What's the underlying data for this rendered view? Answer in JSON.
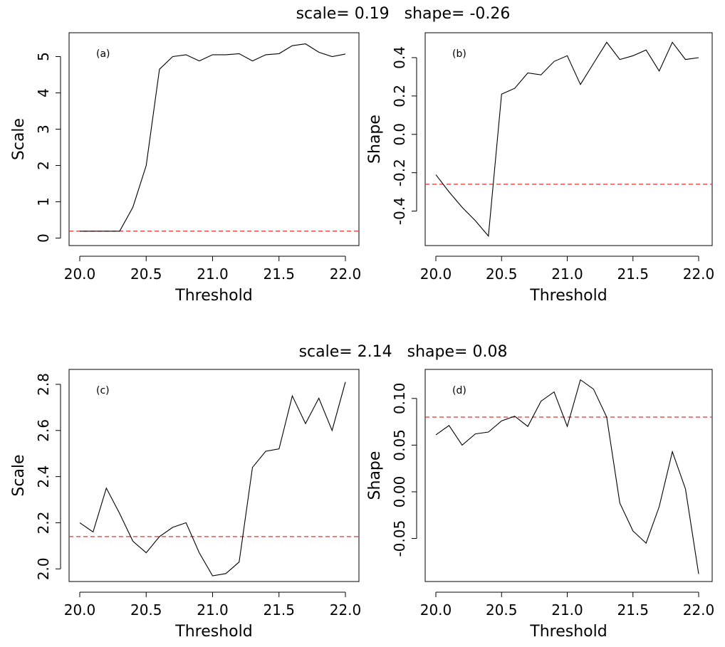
{
  "row_titles": [
    "scale= 0.19   shape= -0.26",
    "scale= 2.14   shape= 0.08"
  ],
  "chart_data": [
    {
      "type": "line",
      "panel_label": "(a)",
      "xlabel": "Threshold",
      "ylabel": "Scale",
      "xlim": [
        20.0,
        22.0
      ],
      "ylim": [
        -0.05,
        5.5
      ],
      "xticks": [
        20.0,
        20.5,
        21.0,
        21.5,
        22.0
      ],
      "xtick_labels": [
        "20.0",
        "20.5",
        "21.0",
        "21.5",
        "22.0"
      ],
      "yticks": [
        0,
        1,
        2,
        3,
        4,
        5
      ],
      "ytick_labels": [
        "0",
        "1",
        "2",
        "3",
        "4",
        "5"
      ],
      "reference_line": 0.19,
      "reference_color": "#e8302f",
      "x": [
        20.0,
        20.1,
        20.2,
        20.3,
        20.4,
        20.5,
        20.6,
        20.7,
        20.8,
        20.9,
        21.0,
        21.1,
        21.2,
        21.3,
        21.4,
        21.5,
        21.6,
        21.7,
        21.8,
        21.9,
        22.0
      ],
      "y": [
        0.19,
        0.19,
        0.19,
        0.19,
        0.85,
        2.0,
        4.65,
        5.0,
        5.05,
        4.88,
        5.05,
        5.05,
        5.08,
        4.88,
        5.05,
        5.08,
        5.3,
        5.35,
        5.12,
        5.0,
        5.07
      ]
    },
    {
      "type": "line",
      "panel_label": "(b)",
      "xlabel": "Threshold",
      "ylabel": "Shape",
      "xlim": [
        20.0,
        22.0
      ],
      "ylim": [
        -0.55,
        0.5
      ],
      "xticks": [
        20.0,
        20.5,
        21.0,
        21.5,
        22.0
      ],
      "xtick_labels": [
        "20.0",
        "20.5",
        "21.0",
        "21.5",
        "22.0"
      ],
      "yticks": [
        -0.4,
        -0.2,
        0.0,
        0.2,
        0.4
      ],
      "ytick_labels": [
        "-0.4",
        "-0.2",
        "0.0",
        "0.2",
        "0.4"
      ],
      "reference_line": -0.26,
      "reference_color": "#e8302f",
      "x": [
        20.0,
        20.1,
        20.2,
        20.3,
        20.4,
        20.5,
        20.6,
        20.7,
        20.8,
        20.9,
        21.0,
        21.1,
        21.2,
        21.3,
        21.4,
        21.5,
        21.6,
        21.7,
        21.8,
        21.9,
        22.0
      ],
      "y": [
        -0.21,
        -0.3,
        -0.38,
        -0.45,
        -0.53,
        0.21,
        0.24,
        0.32,
        0.31,
        0.38,
        0.41,
        0.26,
        0.37,
        0.48,
        0.39,
        0.41,
        0.44,
        0.33,
        0.48,
        0.39,
        0.4
      ]
    },
    {
      "type": "line",
      "panel_label": "(c)",
      "xlabel": "Threshold",
      "ylabel": "Scale",
      "xlim": [
        20.0,
        22.0
      ],
      "ylim": [
        1.97,
        2.84
      ],
      "xticks": [
        20.0,
        20.5,
        21.0,
        21.5,
        22.0
      ],
      "xtick_labels": [
        "20.0",
        "20.5",
        "21.0",
        "21.5",
        "22.0"
      ],
      "yticks": [
        2.0,
        2.2,
        2.4,
        2.6,
        2.8
      ],
      "ytick_labels": [
        "2.0",
        "2.2",
        "2.4",
        "2.6",
        "2.8"
      ],
      "reference_line": 2.14,
      "reference_color": "#e8302f",
      "x": [
        20.0,
        20.1,
        20.2,
        20.3,
        20.4,
        20.5,
        20.6,
        20.7,
        20.8,
        20.9,
        21.0,
        21.1,
        21.2,
        21.3,
        21.4,
        21.5,
        21.6,
        21.7,
        21.8,
        21.9,
        22.0
      ],
      "y": [
        2.2,
        2.16,
        2.35,
        2.24,
        2.12,
        2.07,
        2.14,
        2.18,
        2.2,
        2.07,
        1.97,
        1.98,
        2.03,
        2.44,
        2.51,
        2.52,
        2.75,
        2.63,
        2.74,
        2.6,
        2.81
      ]
    },
    {
      "type": "line",
      "panel_label": "(d)",
      "xlabel": "Threshold",
      "ylabel": "Shape",
      "xlim": [
        20.0,
        22.0
      ],
      "ylim": [
        -0.09,
        0.125
      ],
      "xticks": [
        20.0,
        20.5,
        21.0,
        21.5,
        22.0
      ],
      "xtick_labels": [
        "20.0",
        "20.5",
        "21.0",
        "21.5",
        "22.0"
      ],
      "yticks": [
        -0.05,
        0.0,
        0.05,
        0.1
      ],
      "ytick_labels": [
        "-0.05",
        "0.00",
        "0.05",
        "0.10"
      ],
      "reference_line": 0.08,
      "reference_color": "#e8302f",
      "x": [
        20.0,
        20.1,
        20.2,
        20.3,
        20.4,
        20.5,
        20.6,
        20.7,
        20.8,
        20.9,
        21.0,
        21.1,
        21.2,
        21.3,
        21.4,
        21.5,
        21.6,
        21.7,
        21.8,
        21.9,
        22.0
      ],
      "y": [
        0.061,
        0.071,
        0.05,
        0.062,
        0.064,
        0.076,
        0.081,
        0.07,
        0.097,
        0.107,
        0.07,
        0.12,
        0.11,
        0.08,
        -0.012,
        -0.042,
        -0.055,
        -0.016,
        0.043,
        0.003,
        -0.088
      ]
    }
  ]
}
